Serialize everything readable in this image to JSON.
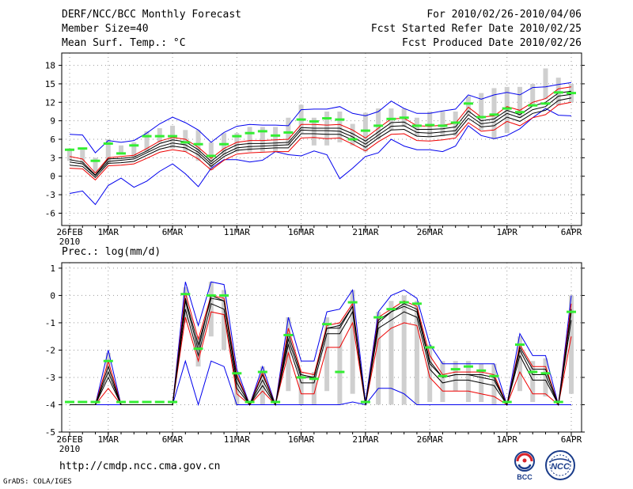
{
  "header": {
    "title": "DERF/NCC/BCC Monthly Forecast",
    "member_size": "Member Size=40",
    "variable_temp": "Mean Surf. Temp.: °C",
    "period": "For 2010/02/26-2010/04/06",
    "started": "Fcst Started Refer Date 2010/02/25",
    "produced": "Fcst Produced Date 2010/02/26"
  },
  "footer": {
    "url": "http://cmdp.ncc.cma.gov.cn",
    "grads": "GrADS: COLA/IGES",
    "logo_bcc": "BCC",
    "logo_ncc": "NCC"
  },
  "colors": {
    "max_line": "#0000ee",
    "min_line": "#0000ee",
    "median_line": "#000000",
    "percentile_line": "#ee0000",
    "box": "#cfcfcf",
    "marker": "#33ee33"
  },
  "chart_data": [
    {
      "type": "line",
      "title": "Mean Surf. Temp.: °C",
      "x_tick_labels": [
        "26FEB",
        "1MAR",
        "6MAR",
        "11MAR",
        "16MAR",
        "21MAR",
        "26MAR",
        "1APR",
        "6APR"
      ],
      "x_tick_index": [
        0,
        3,
        8,
        13,
        18,
        23,
        28,
        34,
        39
      ],
      "x_sublabel": "2010",
      "ylim": [
        -8,
        20
      ],
      "yticks": [
        -6,
        -3,
        0,
        3,
        6,
        9,
        12,
        15,
        18
      ],
      "grid": true,
      "days": 40,
      "series": [
        {
          "name": "max",
          "values": [
            6.8,
            6.7,
            3.8,
            5.8,
            5.5,
            5.8,
            7.0,
            8.5,
            9.6,
            8.7,
            7.5,
            5.5,
            7.1,
            8.1,
            8.4,
            8.3,
            8.3,
            8.2,
            10.8,
            10.9,
            10.9,
            11.3,
            10.2,
            9.8,
            10.5,
            12.2,
            11.0,
            10.2,
            10.2,
            10.6,
            10.9,
            13.2,
            12.5,
            13.2,
            13.6,
            13.2,
            14.4,
            14.5,
            14.9,
            15.2
          ]
        },
        {
          "name": "p90",
          "values": [
            3.2,
            2.8,
            0.5,
            3.0,
            3.2,
            3.4,
            4.5,
            5.7,
            6.3,
            6.0,
            4.7,
            2.9,
            4.5,
            5.5,
            5.8,
            5.8,
            5.9,
            6.0,
            8.4,
            8.4,
            8.3,
            8.4,
            7.5,
            6.2,
            7.8,
            9.3,
            9.4,
            8.2,
            8.1,
            8.3,
            8.6,
            11.2,
            9.6,
            9.8,
            11.3,
            10.7,
            12.0,
            12.6,
            14.2,
            14.5
          ]
        },
        {
          "name": "p75",
          "values": [
            2.7,
            2.3,
            0.2,
            2.8,
            2.9,
            3.1,
            4.1,
            5.3,
            5.9,
            5.6,
            4.3,
            2.4,
            4.1,
            5.1,
            5.3,
            5.3,
            5.4,
            5.5,
            7.9,
            7.8,
            7.8,
            7.8,
            6.9,
            5.7,
            7.2,
            8.7,
            8.8,
            7.6,
            7.6,
            7.7,
            8.0,
            10.6,
            9.0,
            9.3,
            10.7,
            10.0,
            11.4,
            12.0,
            13.5,
            13.8
          ]
        },
        {
          "name": "median",
          "values": [
            2.3,
            2.0,
            0.1,
            2.4,
            2.6,
            2.8,
            3.8,
            4.8,
            5.4,
            5.1,
            3.9,
            2.0,
            3.6,
            4.6,
            4.8,
            4.9,
            5.0,
            5.1,
            7.5,
            7.4,
            7.4,
            7.3,
            6.4,
            5.2,
            6.7,
            8.1,
            8.2,
            7.1,
            7.0,
            7.2,
            7.4,
            10.0,
            8.5,
            8.8,
            10.2,
            9.5,
            10.8,
            11.3,
            13.0,
            13.3
          ]
        },
        {
          "name": "p25",
          "values": [
            1.8,
            1.6,
            -0.2,
            2.1,
            2.2,
            2.4,
            3.4,
            4.4,
            4.9,
            4.6,
            3.5,
            1.6,
            3.2,
            4.2,
            4.4,
            4.5,
            4.6,
            4.6,
            6.9,
            6.9,
            6.8,
            6.8,
            5.9,
            4.7,
            6.2,
            7.5,
            7.6,
            6.5,
            6.4,
            6.6,
            6.9,
            9.4,
            8.0,
            8.2,
            9.6,
            8.9,
            10.2,
            10.7,
            12.3,
            12.7
          ]
        },
        {
          "name": "p10",
          "values": [
            1.3,
            1.2,
            -0.6,
            1.7,
            1.8,
            2.0,
            2.9,
            3.9,
            4.3,
            4.0,
            2.8,
            1.0,
            2.6,
            3.6,
            3.8,
            3.9,
            4.0,
            4.0,
            6.2,
            6.3,
            6.1,
            6.2,
            5.2,
            4.1,
            5.6,
            6.8,
            6.9,
            5.8,
            5.7,
            5.9,
            6.2,
            8.7,
            7.3,
            7.5,
            8.9,
            8.2,
            9.5,
            10.0,
            11.6,
            12.0
          ]
        },
        {
          "name": "min",
          "values": [
            -2.8,
            -2.4,
            -4.6,
            -1.5,
            -0.3,
            -1.8,
            -0.8,
            0.8,
            2.0,
            0.4,
            -1.7,
            1.3,
            2.7,
            2.7,
            2.3,
            2.6,
            4.0,
            3.5,
            3.3,
            4.1,
            3.5,
            -0.4,
            1.3,
            3.2,
            3.8,
            6.0,
            4.9,
            4.3,
            4.3,
            4.0,
            4.9,
            8.2,
            6.6,
            6.1,
            6.6,
            7.7,
            9.5,
            11.0,
            9.9,
            9.8
          ]
        },
        {
          "name": "box_high",
          "values": [
            4.5,
            4.3,
            3.0,
            6.0,
            5.0,
            5.5,
            7.3,
            7.8,
            8.2,
            7.5,
            7.5,
            5.5,
            7.0,
            7.0,
            8.0,
            8.0,
            8.0,
            9.5,
            11.6,
            9.5,
            10.5,
            10.5,
            8.5,
            10.3,
            11.0,
            11.0,
            11.0,
            9.5,
            10.5,
            10.5,
            10.5,
            13.0,
            13.5,
            14.3,
            14.5,
            14.5,
            15.0,
            17.5,
            16.0,
            15.0
          ]
        },
        {
          "name": "box_low",
          "values": [
            2.5,
            2.0,
            0.5,
            2.0,
            3.5,
            3.0,
            4.0,
            5.5,
            4.5,
            4.0,
            2.5,
            1.0,
            3.5,
            4.0,
            4.0,
            4.0,
            4.0,
            5.0,
            7.0,
            5.0,
            5.0,
            5.5,
            5.0,
            4.0,
            6.0,
            7.5,
            8.0,
            6.5,
            6.5,
            6.5,
            6.5,
            10.0,
            7.5,
            6.0,
            7.0,
            9.5,
            11.5,
            12.5,
            11.5,
            12.0
          ]
        },
        {
          "name": "marker",
          "values": [
            4.3,
            4.5,
            2.5,
            5.3,
            3.7,
            5.0,
            6.5,
            6.5,
            6.5,
            5.5,
            5.2,
            3.3,
            5.2,
            6.5,
            7.0,
            7.3,
            6.6,
            7.1,
            9.2,
            8.9,
            9.4,
            9.2,
            6.0,
            7.4,
            8.2,
            9.3,
            9.5,
            8.2,
            8.3,
            8.2,
            8.7,
            11.8,
            9.6,
            10.0,
            11.0,
            10.4,
            11.5,
            11.8,
            13.6,
            13.5
          ]
        }
      ]
    },
    {
      "type": "line",
      "title": "Prec.: log(mm/d)",
      "x_tick_labels": [
        "26FEB",
        "1MAR",
        "6MAR",
        "11MAR",
        "16MAR",
        "21MAR",
        "26MAR",
        "1APR",
        "6APR"
      ],
      "x_tick_index": [
        0,
        3,
        8,
        13,
        18,
        23,
        28,
        34,
        39
      ],
      "x_sublabel": "2010",
      "ylim": [
        -5,
        1.2
      ],
      "yticks": [
        -5,
        -4,
        -3,
        -2,
        -1,
        0,
        1
      ],
      "grid": true,
      "days": 40,
      "series": [
        {
          "name": "max",
          "values": [
            -4,
            -4,
            -4,
            -2.0,
            -4,
            -4,
            -4,
            -4,
            -4,
            0.5,
            -1.1,
            0.5,
            0.4,
            -2.7,
            -4,
            -2.6,
            -4,
            -0.8,
            -2.4,
            -2.4,
            -0.6,
            -0.5,
            0.2,
            -3.9,
            -0.6,
            0.0,
            0.2,
            -0.1,
            -1.8,
            -2.5,
            -2.5,
            -2.5,
            -2.5,
            -2.5,
            -4,
            -1.4,
            -2.2,
            -2.2,
            -4,
            0.0
          ]
        },
        {
          "name": "p90",
          "values": [
            -4,
            -4,
            -4,
            -2.4,
            -4,
            -4,
            -4,
            -4,
            -4,
            0.1,
            -1.6,
            0.0,
            -0.1,
            -2.9,
            -4,
            -2.8,
            -4,
            -1.2,
            -2.8,
            -2.9,
            -1.1,
            -1.0,
            -0.3,
            -4,
            -0.8,
            -0.5,
            -0.2,
            -0.4,
            -2.2,
            -2.9,
            -2.8,
            -2.8,
            -2.8,
            -2.9,
            -4,
            -1.8,
            -2.6,
            -2.6,
            -4,
            -0.3
          ]
        },
        {
          "name": "p75",
          "values": [
            -4,
            -4,
            -4,
            -2.6,
            -4,
            -4,
            -4,
            -4,
            -4,
            -0.1,
            -1.8,
            -0.1,
            -0.2,
            -3.0,
            -4,
            -2.9,
            -4,
            -1.4,
            -2.9,
            -3.0,
            -1.2,
            -1.1,
            -0.4,
            -4,
            -0.9,
            -0.6,
            -0.3,
            -0.5,
            -2.4,
            -3.0,
            -2.9,
            -2.9,
            -2.9,
            -3.0,
            -4,
            -1.9,
            -2.7,
            -2.7,
            -4,
            -0.5
          ]
        },
        {
          "name": "median",
          "values": [
            -4,
            -4,
            -4,
            -2.8,
            -4,
            -4,
            -4,
            -4,
            -4,
            -0.2,
            -2.0,
            0.0,
            -0.2,
            -3.2,
            -4,
            -3.1,
            -4,
            -1.6,
            -3.0,
            -3.0,
            -1.2,
            -1.2,
            -0.4,
            -4,
            -1.0,
            -0.6,
            -0.4,
            -0.6,
            -2.5,
            -3.0,
            -2.9,
            -2.9,
            -3.0,
            -3.1,
            -4,
            -2.0,
            -2.9,
            -2.9,
            -4,
            -0.6
          ]
        },
        {
          "name": "p25",
          "values": [
            -4,
            -4,
            -4,
            -3.0,
            -4,
            -4,
            -4,
            -4,
            -4,
            -0.5,
            -2.2,
            -0.3,
            -0.5,
            -3.4,
            -4,
            -3.3,
            -4,
            -1.8,
            -3.2,
            -3.2,
            -1.4,
            -1.4,
            -0.6,
            -4,
            -1.2,
            -0.9,
            -0.6,
            -0.8,
            -2.7,
            -3.2,
            -3.1,
            -3.1,
            -3.2,
            -3.3,
            -4,
            -2.2,
            -3.1,
            -3.1,
            -4,
            -0.9
          ]
        },
        {
          "name": "p10",
          "values": [
            -4,
            -4,
            -4,
            -3.4,
            -4,
            -4,
            -4,
            -4,
            -4,
            -0.8,
            -2.4,
            -0.6,
            -0.7,
            -3.6,
            -4,
            -3.5,
            -4,
            -2.1,
            -3.6,
            -3.6,
            -1.9,
            -1.9,
            -1.0,
            -4,
            -1.6,
            -1.2,
            -1.0,
            -1.1,
            -3.0,
            -3.5,
            -3.5,
            -3.5,
            -3.6,
            -3.7,
            -4,
            -2.8,
            -3.6,
            -3.6,
            -4,
            -1.5
          ]
        },
        {
          "name": "min",
          "values": [
            -4,
            -4,
            -4,
            -4,
            -4,
            -4,
            -4,
            -4,
            -4,
            -2.4,
            -4,
            -2.4,
            -2.6,
            -4,
            -4,
            -4,
            -4,
            -4,
            -4,
            -4,
            -4,
            -4,
            -3.9,
            -4,
            -3.4,
            -3.4,
            -3.6,
            -4,
            -4,
            -4,
            -4,
            -4,
            -4,
            -4,
            -4,
            -4,
            -4,
            -4,
            -4,
            -4
          ]
        },
        {
          "name": "box_high",
          "values": [
            -4,
            -4,
            -4,
            -2.1,
            -4,
            -4,
            -4,
            -4,
            -4,
            0.3,
            -1.5,
            0.5,
            0.2,
            -2.8,
            -4,
            -2.6,
            -4,
            -0.8,
            -2.8,
            -2.8,
            -0.8,
            -1.0,
            0.2,
            -4,
            -0.6,
            -0.2,
            0.0,
            -0.2,
            -1.8,
            -2.4,
            -2.4,
            -2.4,
            -2.5,
            -2.5,
            -4,
            -1.5,
            -2.4,
            -2.3,
            -4,
            0.0
          ]
        },
        {
          "name": "box_low",
          "values": [
            -4,
            -4,
            -4,
            -3.0,
            -4,
            -4,
            -4,
            -4,
            -4,
            -1.0,
            -2.6,
            -1.5,
            -2.0,
            -4,
            -4,
            -4,
            -4,
            -3.5,
            -4,
            -4,
            -3.5,
            -4,
            -3.6,
            -4,
            -4,
            -4,
            -4,
            -4,
            -3.9,
            -3.9,
            -3.5,
            -3.9,
            -3.9,
            -4,
            -4,
            -3.5,
            -3.9,
            -3.7,
            -4,
            -3.6
          ]
        },
        {
          "name": "marker",
          "values": [
            -3.9,
            -3.9,
            -3.9,
            -2.4,
            -3.9,
            -3.9,
            -3.9,
            -3.9,
            -3.9,
            0.05,
            -1.95,
            0.0,
            0.0,
            -2.85,
            -3.9,
            -2.8,
            -3.9,
            -1.45,
            -3.0,
            -3.05,
            -1.05,
            -2.8,
            -0.25,
            -3.9,
            -0.8,
            -0.5,
            -0.25,
            -0.3,
            -1.9,
            -2.95,
            -2.7,
            -2.6,
            -2.75,
            -2.95,
            -3.9,
            -1.8,
            -2.8,
            -2.85,
            -3.9,
            -0.6
          ]
        }
      ]
    }
  ]
}
